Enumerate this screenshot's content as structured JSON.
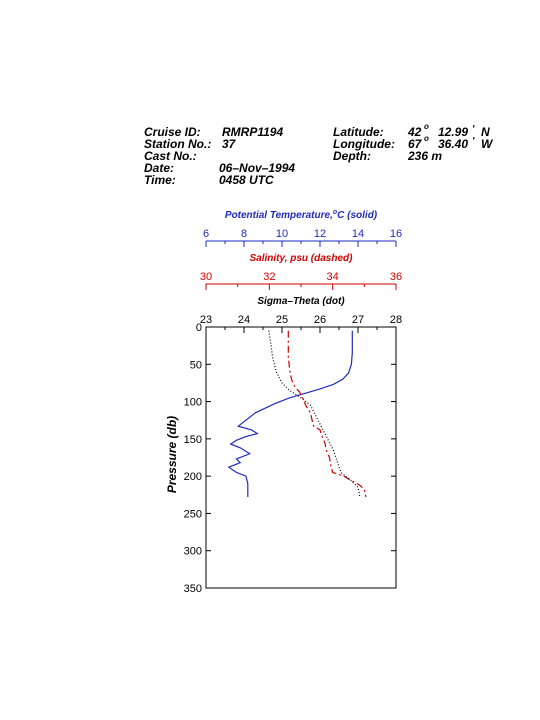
{
  "header": {
    "cruise_label": "Cruise ID:",
    "cruise_value": "RMRP1194",
    "station_label": "Station No.:",
    "station_value": "37",
    "cast_label": "Cast No.:",
    "cast_value": "",
    "date_label": "Date:",
    "date_value": "06–Nov–1994",
    "time_label": "Time:",
    "time_value": "0458 UTC",
    "lat_label": "Latitude:",
    "lat_deg": "42",
    "lat_min": "12.99",
    "lat_hemi": "N",
    "lon_label": "Longitude:",
    "lon_deg": "67",
    "lon_min": "36.40",
    "lon_hemi": "W",
    "depth_label": "Depth:",
    "depth_value": "236 m",
    "deg_symbol": "o",
    "min_symbol": "'"
  },
  "colors": {
    "temperature": "#1f2bbf",
    "salinity": "#d00000",
    "sigma": "#000000"
  },
  "chart_data": {
    "type": "line",
    "ylabel": "Pressure (db)",
    "ylim": [
      0,
      350
    ],
    "y_ticks": [
      0,
      50,
      100,
      150,
      200,
      250,
      300,
      350
    ],
    "y_inverted": true,
    "axes": [
      {
        "key": "temperature",
        "label": "Potential Temperature,",
        "label_unit": "C (solid)",
        "label_sup": "o",
        "xlim": [
          6,
          16
        ],
        "ticks": [
          6,
          8,
          10,
          12,
          14,
          16
        ],
        "style": "solid"
      },
      {
        "key": "salinity",
        "label": "Salinity, psu  (dashed)",
        "xlim": [
          30,
          36
        ],
        "ticks": [
          30,
          32,
          34,
          36
        ],
        "style": "dashed"
      },
      {
        "key": "sigma",
        "label": "Sigma–Theta (dot)",
        "xlim": [
          23,
          28
        ],
        "ticks": [
          23,
          24,
          25,
          26,
          27,
          28
        ],
        "style": "dotted"
      }
    ],
    "series": [
      {
        "key": "temperature",
        "points": [
          [
            13.7,
            5
          ],
          [
            13.7,
            20
          ],
          [
            13.7,
            35
          ],
          [
            13.65,
            50
          ],
          [
            13.5,
            62
          ],
          [
            13.2,
            70
          ],
          [
            12.7,
            77
          ],
          [
            12.0,
            83
          ],
          [
            11.2,
            89
          ],
          [
            10.4,
            95
          ],
          [
            9.6,
            103
          ],
          [
            8.6,
            115
          ],
          [
            8.0,
            127
          ],
          [
            7.7,
            133
          ],
          [
            8.4,
            138
          ],
          [
            8.7,
            143
          ],
          [
            8.1,
            147
          ],
          [
            7.6,
            152
          ],
          [
            7.3,
            157
          ],
          [
            7.8,
            162
          ],
          [
            8.3,
            170
          ],
          [
            7.6,
            177
          ],
          [
            7.8,
            182
          ],
          [
            7.2,
            188
          ],
          [
            7.6,
            195
          ],
          [
            8.1,
            200
          ],
          [
            8.2,
            210
          ],
          [
            8.2,
            220
          ],
          [
            8.2,
            228
          ]
        ]
      },
      {
        "key": "salinity",
        "points": [
          [
            32.6,
            5
          ],
          [
            32.6,
            20
          ],
          [
            32.6,
            40
          ],
          [
            32.65,
            60
          ],
          [
            32.7,
            70
          ],
          [
            32.8,
            80
          ],
          [
            32.95,
            87
          ],
          [
            33.05,
            95
          ],
          [
            33.15,
            105
          ],
          [
            33.3,
            115
          ],
          [
            33.35,
            125
          ],
          [
            33.4,
            133
          ],
          [
            33.6,
            138
          ],
          [
            33.65,
            145
          ],
          [
            33.75,
            155
          ],
          [
            33.8,
            165
          ],
          [
            33.9,
            175
          ],
          [
            33.95,
            188
          ],
          [
            34.0,
            195
          ],
          [
            34.35,
            200
          ],
          [
            34.55,
            205
          ],
          [
            34.85,
            212
          ],
          [
            35.0,
            218
          ],
          [
            35.05,
            228
          ]
        ]
      },
      {
        "key": "sigma",
        "points": [
          [
            24.65,
            5
          ],
          [
            24.7,
            20
          ],
          [
            24.75,
            40
          ],
          [
            24.85,
            60
          ],
          [
            25.0,
            75
          ],
          [
            25.2,
            85
          ],
          [
            25.5,
            95
          ],
          [
            25.75,
            105
          ],
          [
            25.85,
            115
          ],
          [
            25.95,
            125
          ],
          [
            26.05,
            135
          ],
          [
            26.2,
            150
          ],
          [
            26.35,
            165
          ],
          [
            26.45,
            180
          ],
          [
            26.55,
            195
          ],
          [
            26.8,
            205
          ],
          [
            27.0,
            215
          ],
          [
            27.05,
            228
          ]
        ]
      }
    ]
  }
}
